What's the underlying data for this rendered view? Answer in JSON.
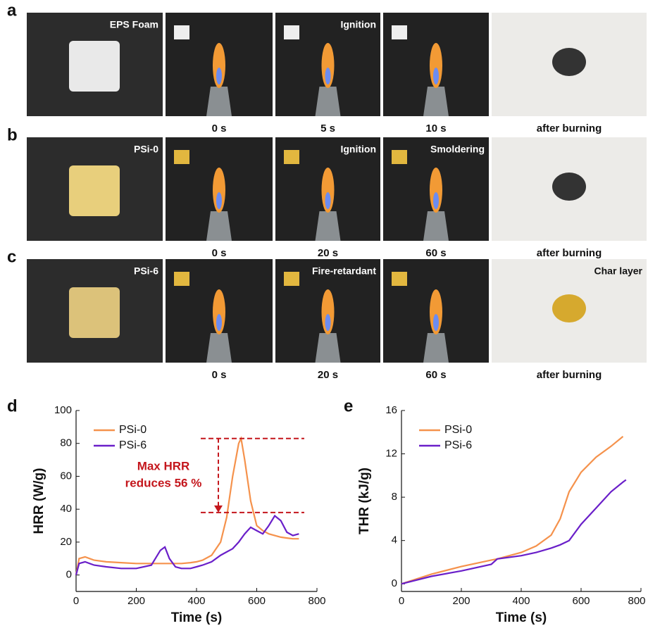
{
  "rows": [
    {
      "letter": "a",
      "photo_texts": [
        "EPS Foam",
        null,
        "Ignition",
        null,
        null
      ],
      "captions": [
        "0 s",
        "5 s",
        "10 s",
        "after burning"
      ]
    },
    {
      "letter": "b",
      "photo_texts": [
        "PSi-0",
        null,
        "Ignition",
        "Smoldering",
        null
      ],
      "captions": [
        "0 s",
        "20 s",
        "60 s",
        "after burning"
      ]
    },
    {
      "letter": "c",
      "photo_texts": [
        "PSi-6",
        null,
        "Fire-retardant",
        null,
        "Char layer"
      ],
      "captions": [
        "0 s",
        "20 s",
        "60 s",
        "after burning"
      ]
    }
  ],
  "chart_data": [
    {
      "type": "line",
      "panel_letter": "d",
      "xlabel": "Time (s)",
      "ylabel": "HRR (W/g)",
      "xlim": [
        0,
        800
      ],
      "xticks": [
        0,
        200,
        400,
        600,
        800
      ],
      "ylim": [
        -10,
        100
      ],
      "yticks": [
        0,
        20,
        40,
        60,
        80,
        100
      ],
      "x": [
        0,
        10,
        30,
        60,
        100,
        150,
        200,
        250,
        280,
        295,
        310,
        330,
        350,
        380,
        400,
        420,
        450,
        480,
        500,
        520,
        540,
        548,
        560,
        580,
        600,
        620,
        640,
        660,
        680,
        700,
        720,
        740
      ],
      "series": [
        {
          "name": "PSi-0",
          "color": "#f5924c",
          "values": [
            0,
            10,
            11,
            9,
            8,
            7.5,
            7,
            7,
            7,
            7,
            7,
            7,
            7,
            7.5,
            8,
            9,
            12,
            20,
            35,
            60,
            80,
            83,
            70,
            45,
            30,
            27,
            25,
            24,
            23,
            22.5,
            22,
            22
          ]
        },
        {
          "name": "PSi-6",
          "color": "#6a1fc9",
          "values": [
            0,
            7,
            8,
            6,
            5,
            4,
            4,
            6,
            15,
            17,
            10,
            5,
            4,
            4,
            5,
            6,
            8,
            12,
            14,
            16,
            20,
            22,
            25,
            29,
            27,
            25,
            30,
            36,
            33,
            26,
            24,
            25
          ]
        }
      ],
      "reference_lines": [
        83,
        38
      ],
      "reference_color": "#c4161c",
      "annotation": [
        "Max HRR",
        "reduces 56 %"
      ]
    },
    {
      "type": "line",
      "panel_letter": "e",
      "xlabel": "Time (s)",
      "ylabel": "THR (kJ/g)",
      "xlim": [
        0,
        800
      ],
      "xticks": [
        0,
        200,
        400,
        600,
        800
      ],
      "ylim": [
        -0.7,
        16
      ],
      "yticks": [
        0,
        4,
        8,
        12,
        16
      ],
      "x": [
        0,
        100,
        200,
        300,
        320,
        400,
        450,
        500,
        530,
        560,
        600,
        650,
        700,
        740,
        750
      ],
      "series": [
        {
          "name": "PSi-0",
          "color": "#f5924c",
          "values": [
            0,
            0.9,
            1.6,
            2.2,
            2.3,
            2.9,
            3.5,
            4.5,
            6,
            8.5,
            10.3,
            11.7,
            12.7,
            13.6,
            null
          ]
        },
        {
          "name": "PSi-6",
          "color": "#6a1fc9",
          "values": [
            0,
            0.7,
            1.2,
            1.8,
            2.3,
            2.6,
            2.9,
            3.3,
            3.6,
            4.0,
            5.5,
            7,
            8.5,
            9.4,
            9.6
          ]
        }
      ]
    }
  ]
}
